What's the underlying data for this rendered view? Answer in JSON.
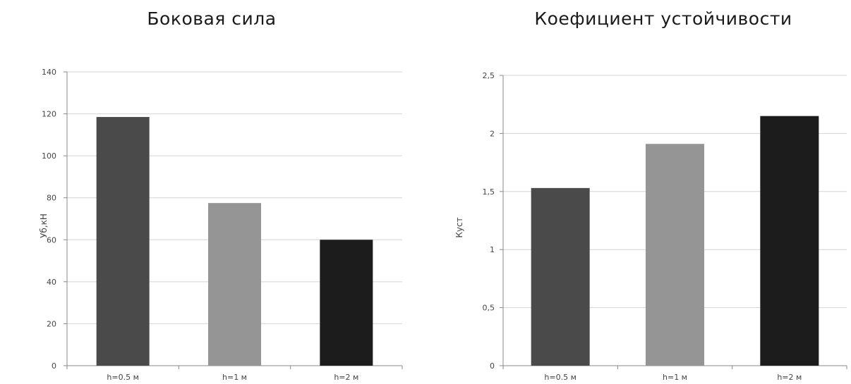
{
  "chart_data": [
    {
      "type": "bar",
      "title": "Боковая сила",
      "ylabel": "Уб,кН",
      "xlabel": "",
      "categories": [
        "h=0.5 м",
        "h=1 м",
        "h=2 м"
      ],
      "values": [
        118.5,
        77.5,
        60
      ],
      "ylim": [
        0,
        140
      ],
      "yticks": [
        "0",
        "20",
        "40",
        "60",
        "80",
        "100",
        "120",
        "140"
      ],
      "ytick_values": [
        0,
        20,
        40,
        60,
        80,
        100,
        120,
        140
      ],
      "colors": [
        "#4a4a4a",
        "#959595",
        "#1c1c1c"
      ],
      "grid": true,
      "legend": "none"
    },
    {
      "type": "bar",
      "title": "Коефициент устойчивости",
      "ylabel": "Куст",
      "xlabel": "",
      "categories": [
        "h=0.5 м",
        "h=1 м",
        "h=2 м"
      ],
      "values": [
        1.53,
        1.91,
        2.15
      ],
      "ylim": [
        0,
        2.5
      ],
      "yticks": [
        "0",
        "0,5",
        "1",
        "1,5",
        "2",
        "2,5"
      ],
      "ytick_values": [
        0,
        0.5,
        1,
        1.5,
        2,
        2.5
      ],
      "colors": [
        "#4a4a4a",
        "#959595",
        "#1c1c1c"
      ],
      "grid": true,
      "legend": "none"
    }
  ]
}
